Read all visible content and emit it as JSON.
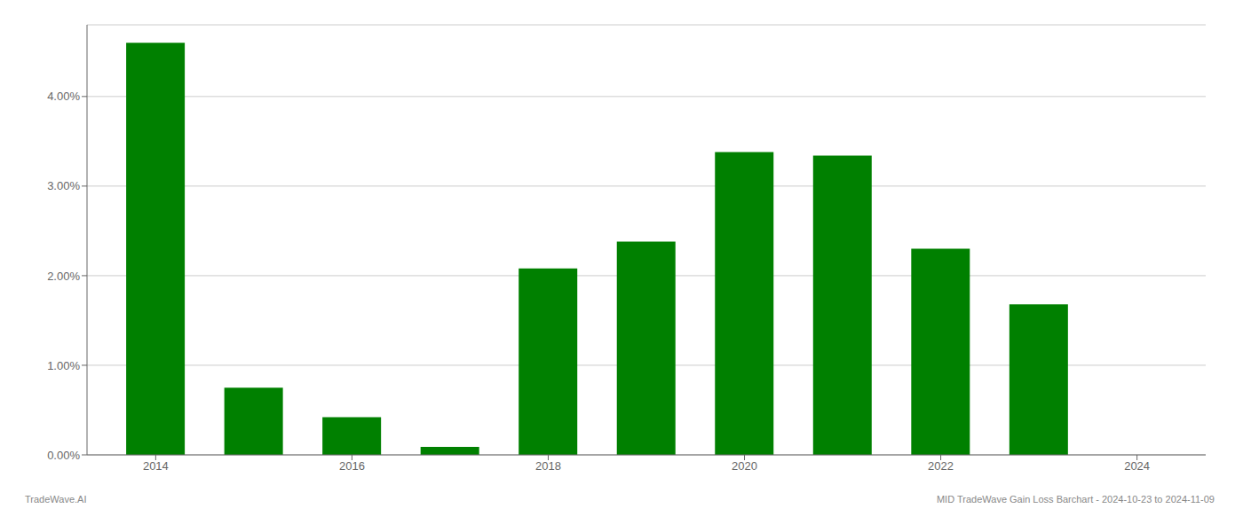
{
  "chart_data": {
    "type": "bar",
    "x": [
      2014,
      2015,
      2016,
      2017,
      2018,
      2019,
      2020,
      2021,
      2022,
      2023
    ],
    "values": [
      0.046,
      0.0075,
      0.0042,
      0.0009,
      0.0208,
      0.0238,
      0.0338,
      0.0334,
      0.023,
      0.0168
    ],
    "color": "#008000",
    "xlim": [
      2013.3,
      2024.7
    ],
    "xticks": [
      2014,
      2016,
      2018,
      2020,
      2022,
      2024
    ],
    "ylim": [
      0.0,
      0.048
    ],
    "yticks": [
      {
        "value": 0.0,
        "label": "0.00%"
      },
      {
        "value": 0.01,
        "label": "1.00%"
      },
      {
        "value": 0.02,
        "label": "2.00%"
      },
      {
        "value": 0.03,
        "label": "3.00%"
      },
      {
        "value": 0.04,
        "label": "4.00%"
      }
    ],
    "grid": true,
    "annotations": [
      "TradeWave.AI",
      "MID TradeWave Gain Loss Barchart - 2024-10-23 to 2024-11-09"
    ]
  }
}
